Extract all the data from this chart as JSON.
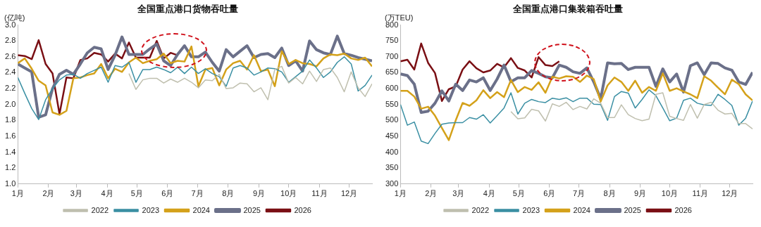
{
  "chart_data": [
    {
      "type": "line",
      "title": "全国重点港口货物吞吐量",
      "ylabel": "(亿吨)",
      "legend": "bottom",
      "grid": false,
      "marker": "none",
      "line_style": "solid",
      "x": [
        "--01-01",
        "--01-08",
        "--01-15",
        "--01-22",
        "--01-29",
        "--02-05",
        "--02-12",
        "--02-19",
        "--02-26",
        "--03-05",
        "--03-12",
        "--03-19",
        "--03-26",
        "--04-02",
        "--04-09",
        "--04-16",
        "--04-23",
        "--04-30",
        "--05-07",
        "--05-14",
        "--05-21",
        "--05-28",
        "--06-04",
        "--06-11",
        "--06-18",
        "--06-25",
        "--07-02",
        "--07-09",
        "--07-16",
        "--07-23",
        "--07-30",
        "--08-06",
        "--08-13",
        "--08-20",
        "--08-27",
        "--09-03",
        "--09-10",
        "--09-17",
        "--09-24",
        "--10-01",
        "--10-08",
        "--10-15",
        "--10-22",
        "--10-29",
        "--11-05",
        "--11-12",
        "--11-19",
        "--11-26",
        "--12-03",
        "--12-10",
        "--12-17",
        "--12-24"
      ],
      "xlim": [
        "--01-01",
        "--12-24"
      ],
      "xticks": [
        {
          "value": "--01-01",
          "label": "1月"
        },
        {
          "value": "--02-01",
          "label": "2月"
        },
        {
          "value": "--03-01",
          "label": "3月"
        },
        {
          "value": "--04-01",
          "label": "4月"
        },
        {
          "value": "--05-01",
          "label": "5月"
        },
        {
          "value": "--06-01",
          "label": "6月"
        },
        {
          "value": "--07-01",
          "label": "7月"
        },
        {
          "value": "--08-01",
          "label": "8月"
        },
        {
          "value": "--09-01",
          "label": "9月"
        },
        {
          "value": "--10-01",
          "label": "10月"
        },
        {
          "value": "--11-01",
          "label": "11月"
        },
        {
          "value": "--12-01",
          "label": "12月"
        }
      ],
      "ylim": [
        1,
        3
      ],
      "yticks": [
        {
          "value": 1,
          "label": "1.0"
        },
        1.2,
        1.4,
        1.6,
        1.8,
        {
          "value": 2,
          "label": "2.0"
        },
        2.2,
        2.4,
        2.6,
        2.8,
        {
          "value": 3,
          "label": "3.0"
        }
      ],
      "series": [
        {
          "name": "2022",
          "color": "#bfbfae",
          "values": [
            null,
            null,
            null,
            null,
            null,
            null,
            null,
            null,
            null,
            null,
            null,
            null,
            null,
            null,
            null,
            null,
            2.39,
            2.19,
            2.31,
            2.33,
            2.33,
            2.27,
            2.32,
            2.28,
            2.33,
            2.28,
            2.21,
            2.31,
            2.3,
            2.38,
            2.2,
            2.21,
            2.27,
            2.26,
            2.16,
            2.21,
            2.06,
            2.44,
            2.48,
            2.27,
            2.34,
            2.26,
            2.42,
            2.29,
            2.44,
            2.46,
            2.34,
            2.16,
            2.41,
            2.21,
            2.1,
            2.26
          ]
        },
        {
          "name": "2023",
          "color": "#3a8fa3",
          "values": [
            2.34,
            2.14,
            1.95,
            1.81,
            2.06,
            2.2,
            2.31,
            2.37,
            2.38,
            2.33,
            2.39,
            2.43,
            2.47,
            2.28,
            2.49,
            2.47,
            2.53,
            2.28,
            2.44,
            2.44,
            2.47,
            2.44,
            2.4,
            2.47,
            2.39,
            2.47,
            2.39,
            2.45,
            2.39,
            2.35,
            2.23,
            2.46,
            2.49,
            2.46,
            2.37,
            2.41,
            2.46,
            2.45,
            2.41,
            2.28,
            2.35,
            2.42,
            2.56,
            2.46,
            2.34,
            2.41,
            2.53,
            2.6,
            2.51,
            2.17,
            2.24,
            2.37
          ]
        },
        {
          "name": "2024",
          "color": "#d4a11a",
          "values": [
            2.52,
            2.58,
            2.45,
            2.3,
            2.24,
            1.9,
            1.87,
            1.92,
            2.33,
            2.34,
            2.37,
            2.39,
            2.51,
            2.33,
            2.45,
            2.41,
            2.53,
            2.59,
            2.52,
            2.55,
            2.57,
            2.64,
            2.52,
            2.55,
            2.54,
            2.73,
            2.23,
            2.44,
            2.46,
            2.24,
            2.44,
            2.52,
            2.55,
            2.44,
            2.62,
            2.42,
            2.44,
            2.23,
            2.67,
            2.51,
            2.56,
            2.52,
            2.51,
            2.48,
            2.58,
            2.63,
            2.62,
            2.64,
            2.58,
            2.56,
            2.59,
            2.48
          ]
        },
        {
          "name": "2025",
          "color": "#6b7089",
          "values": [
            2.51,
            2.46,
            2.41,
            1.84,
            1.87,
            2.2,
            2.38,
            2.43,
            2.38,
            2.51,
            2.65,
            2.72,
            2.7,
            2.44,
            2.62,
            2.85,
            2.63,
            2.63,
            2.63,
            2.7,
            2.76,
            2.55,
            2.49,
            2.63,
            2.74,
            2.6,
            2.6,
            2.66,
            2.53,
            2.42,
            2.69,
            2.6,
            2.67,
            2.74,
            2.59,
            2.63,
            2.64,
            2.59,
            2.71,
            2.49,
            2.55,
            2.42,
            2.8,
            2.69,
            2.65,
            2.63,
            2.86,
            2.64,
            2.62,
            2.59,
            2.57,
            2.55
          ]
        },
        {
          "name": "2026",
          "color": "#7a0f14",
          "values": [
            2.62,
            2.61,
            2.57,
            2.81,
            2.51,
            2.39,
            1.88,
            2.34,
            2.33,
            2.56,
            2.58,
            2.65,
            2.63,
            2.54,
            2.64,
            2.58,
            2.78,
            2.59,
            2.59,
            2.59,
            2.8,
            2.58,
            2.65,
            2.62,
            null,
            null,
            null,
            null,
            null,
            null,
            null,
            null,
            null,
            null,
            null,
            null,
            null,
            null,
            null,
            null,
            null,
            null,
            null,
            null,
            null,
            null,
            null,
            null,
            null,
            null,
            null,
            null
          ]
        }
      ]
    },
    {
      "type": "line",
      "title": "全国重点港口集装箱吞吐量",
      "ylabel": "(万TEU)",
      "legend": "bottom",
      "grid": false,
      "marker": "none",
      "line_style": "solid",
      "x": [
        "--01-01",
        "--01-08",
        "--01-15",
        "--01-22",
        "--01-29",
        "--02-05",
        "--02-12",
        "--02-19",
        "--02-26",
        "--03-05",
        "--03-12",
        "--03-19",
        "--03-26",
        "--04-02",
        "--04-09",
        "--04-16",
        "--04-23",
        "--04-30",
        "--05-07",
        "--05-14",
        "--05-21",
        "--05-28",
        "--06-04",
        "--06-11",
        "--06-18",
        "--06-25",
        "--07-02",
        "--07-09",
        "--07-16",
        "--07-23",
        "--07-30",
        "--08-06",
        "--08-13",
        "--08-20",
        "--08-27",
        "--09-03",
        "--09-10",
        "--09-17",
        "--09-24",
        "--10-01",
        "--10-08",
        "--10-15",
        "--10-22",
        "--10-29",
        "--11-05",
        "--11-12",
        "--11-19",
        "--11-26",
        "--12-03",
        "--12-10",
        "--12-17",
        "--12-24"
      ],
      "xlim": [
        "--01-01",
        "--12-24"
      ],
      "xticks": [
        {
          "value": "--01-01",
          "label": "1月"
        },
        {
          "value": "--02-01",
          "label": "2月"
        },
        {
          "value": "--03-01",
          "label": "3月"
        },
        {
          "value": "--04-01",
          "label": "4月"
        },
        {
          "value": "--05-01",
          "label": "5月"
        },
        {
          "value": "--06-01",
          "label": "6月"
        },
        {
          "value": "--07-01",
          "label": "7月"
        },
        {
          "value": "--08-01",
          "label": "8月"
        },
        {
          "value": "--09-01",
          "label": "9月"
        },
        {
          "value": "--10-01",
          "label": "10月"
        },
        {
          "value": "--11-01",
          "label": "11月"
        },
        {
          "value": "--12-01",
          "label": "12月"
        }
      ],
      "ylim": [
        300,
        800
      ],
      "yticks": [
        300,
        350,
        400,
        450,
        500,
        550,
        600,
        650,
        700,
        750,
        800
      ],
      "series": [
        {
          "name": "2022",
          "color": "#bfbfae",
          "values": [
            null,
            null,
            null,
            null,
            null,
            null,
            null,
            null,
            null,
            null,
            null,
            null,
            null,
            null,
            null,
            null,
            528,
            505,
            508,
            535,
            530,
            498,
            552,
            544,
            557,
            534,
            544,
            536,
            568,
            554,
            509,
            509,
            549,
            518,
            506,
            499,
            504,
            582,
            587,
            513,
            506,
            500,
            550,
            507,
            550,
            557,
            532,
            520,
            522,
            490,
            490,
            473
          ]
        },
        {
          "name": "2023",
          "color": "#3a8fa3",
          "values": [
            550,
            485,
            495,
            435,
            427,
            459,
            488,
            492,
            493,
            493,
            509,
            504,
            518,
            492,
            515,
            539,
            587,
            520,
            554,
            566,
            559,
            556,
            570,
            566,
            571,
            559,
            570,
            570,
            551,
            550,
            500,
            575,
            591,
            586,
            539,
            566,
            596,
            578,
            539,
            499,
            507,
            563,
            570,
            554,
            549,
            547,
            582,
            566,
            547,
            485,
            507,
            561
          ]
        },
        {
          "name": "2024",
          "color": "#d4a11a",
          "values": [
            593,
            593,
            575,
            537,
            543,
            515,
            476,
            438,
            500,
            555,
            546,
            563,
            595,
            570,
            589,
            573,
            627,
            589,
            605,
            596,
            620,
            587,
            637,
            632,
            639,
            637,
            621,
            641,
            630,
            559,
            610,
            635,
            621,
            593,
            625,
            587,
            605,
            593,
            648,
            593,
            601,
            591,
            582,
            570,
            639,
            625,
            603,
            582,
            628,
            614,
            582,
            563
          ]
        },
        {
          "name": "2025",
          "color": "#6b7089",
          "values": [
            646,
            641,
            614,
            525,
            529,
            554,
            593,
            561,
            614,
            594,
            627,
            621,
            634,
            594,
            630,
            674,
            622,
            634,
            634,
            657,
            648,
            637,
            634,
            674,
            667,
            653,
            648,
            665,
            621,
            568,
            681,
            678,
            679,
            660,
            667,
            667,
            667,
            607,
            662,
            621,
            646,
            589,
            672,
            681,
            644,
            681,
            679,
            665,
            658,
            621,
            613,
            651
          ]
        },
        {
          "name": "2026",
          "color": "#7a0f14",
          "values": [
            686,
            691,
            660,
            742,
            681,
            649,
            561,
            598,
            607,
            660,
            686,
            664,
            651,
            657,
            678,
            667,
            696,
            665,
            657,
            635,
            699,
            674,
            671,
            686,
            null,
            null,
            null,
            null,
            null,
            null,
            null,
            null,
            null,
            null,
            null,
            null,
            null,
            null,
            null,
            null,
            null,
            null,
            null,
            null,
            null,
            null,
            null,
            null,
            null,
            null,
            null,
            null
          ]
        }
      ]
    }
  ]
}
